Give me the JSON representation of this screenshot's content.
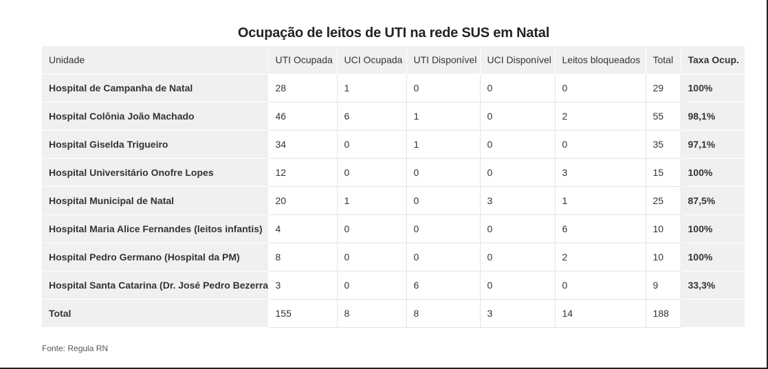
{
  "title": "Ocupação de leitos de UTI na rede SUS em Natal",
  "source": "Fonte: Regula RN",
  "chart_data": {
    "type": "table",
    "title": "Ocupação de leitos de UTI na rede SUS em Natal",
    "columns": [
      "Unidade",
      "UTI Ocupada",
      "UCI Ocupada",
      "UTI Disponível",
      "UCI Disponível",
      "Leitos bloqueados",
      "Total",
      "Taxa Ocup."
    ],
    "rows": [
      [
        "Hospital de Campanha de Natal",
        "28",
        "1",
        "0",
        "0",
        "0",
        "29",
        "100%"
      ],
      [
        "Hospital Colônia João Machado",
        "46",
        "6",
        "1",
        "0",
        "2",
        "55",
        "98,1%"
      ],
      [
        "Hospital Giselda Trigueiro",
        "34",
        "0",
        "1",
        "0",
        "0",
        "35",
        "97,1%"
      ],
      [
        "Hospital Universitário Onofre Lopes",
        "12",
        "0",
        "0",
        "0",
        "3",
        "15",
        "100%"
      ],
      [
        "Hospital Municipal de Natal",
        "20",
        "1",
        "0",
        "3",
        "1",
        "25",
        "87,5%"
      ],
      [
        "Hospital Maria Alice Fernandes (leitos infantis)",
        "4",
        "0",
        "0",
        "0",
        "6",
        "10",
        "100%"
      ],
      [
        "Hospital Pedro Germano (Hospital da PM)",
        "8",
        "0",
        "0",
        "0",
        "2",
        "10",
        "100%"
      ],
      [
        "Hospital Santa Catarina (Dr. José Pedro Bezerra)",
        "3",
        "0",
        "6",
        "0",
        "0",
        "9",
        "33,3%"
      ],
      [
        "Total",
        "155",
        "8",
        "8",
        "3",
        "14",
        "188",
        ""
      ]
    ]
  }
}
